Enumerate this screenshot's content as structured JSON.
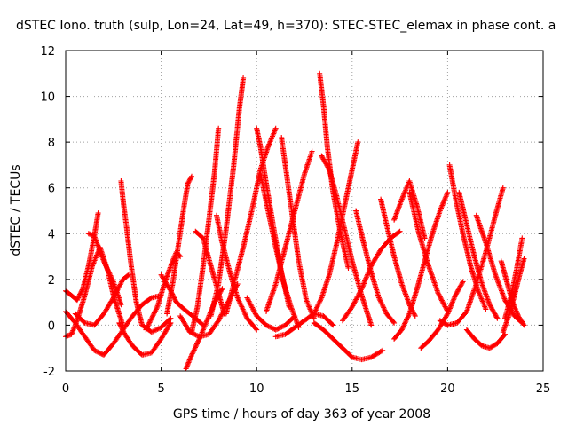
{
  "chart_data": {
    "type": "scatter",
    "title": "dSTEC Iono. truth (sulp, Lon=24, Lat=49, h=370): STEC-STEC_elemax in phase cont. a",
    "xlabel": "GPS time / hours of day 363 of year 2008",
    "ylabel": "dSTEC  / TECUs",
    "xlim": [
      0,
      25
    ],
    "ylim": [
      -2,
      12
    ],
    "xticks": [
      "0",
      "5",
      "10",
      "15",
      "20",
      "25"
    ],
    "yticks": [
      "-2",
      "0",
      "2",
      "4",
      "6",
      "8",
      "10",
      "12"
    ],
    "grid": true,
    "marker": "+",
    "color": "#ff0000",
    "series": [
      {
        "x": [
          0.0,
          0.3,
          0.6,
          0.9,
          1.2,
          1.5,
          1.7
        ],
        "y": [
          1.5,
          1.3,
          1.1,
          1.6,
          2.6,
          3.9,
          4.9
        ]
      },
      {
        "x": [
          0.0,
          0.3,
          0.6,
          1.0,
          1.4,
          1.8,
          2.2,
          2.5,
          2.8,
          3.0
        ],
        "y": [
          -0.5,
          -0.4,
          0.2,
          1.3,
          2.6,
          3.4,
          2.4,
          1.3,
          0.5,
          0.0
        ]
      },
      {
        "x": [
          0.0,
          0.5,
          1.0,
          1.5,
          2.0,
          2.5,
          3.0,
          3.5,
          4.0,
          4.5,
          5.0
        ],
        "y": [
          0.6,
          0.1,
          -0.5,
          -1.1,
          -1.3,
          -0.8,
          -0.2,
          0.4,
          0.9,
          1.2,
          1.3
        ]
      },
      {
        "x": [
          0.5,
          1.0,
          1.5,
          2.0,
          2.5,
          3.0,
          3.3
        ],
        "y": [
          0.5,
          0.1,
          0.0,
          0.5,
          1.2,
          2.0,
          2.2
        ]
      },
      {
        "x": [
          1.2,
          1.5,
          1.8,
          2.1,
          2.5,
          2.9
        ],
        "y": [
          4.0,
          3.9,
          3.2,
          2.6,
          1.9,
          0.9
        ]
      },
      {
        "x": [
          2.9,
          3.0,
          3.2,
          3.4,
          3.7,
          4.0,
          4.5,
          5.0,
          5.5
        ],
        "y": [
          6.3,
          5.5,
          4.2,
          2.8,
          1.0,
          0.0,
          -0.3,
          -0.1,
          0.3
        ]
      },
      {
        "x": [
          2.8,
          3.1,
          3.5,
          4.0,
          4.5,
          5.0,
          5.5
        ],
        "y": [
          0.1,
          -0.4,
          -0.9,
          -1.3,
          -1.2,
          -0.6,
          0.1
        ]
      },
      {
        "x": [
          4.2,
          4.8,
          5.2,
          5.6,
          5.8,
          6.0
        ],
        "y": [
          -0.2,
          0.8,
          1.9,
          2.8,
          3.2,
          3.0
        ]
      },
      {
        "x": [
          5.0,
          5.5,
          5.8,
          6.2,
          6.8,
          7.2
        ],
        "y": [
          2.2,
          1.5,
          1.0,
          0.7,
          0.3,
          0.0
        ]
      },
      {
        "x": [
          5.3,
          5.6,
          5.9,
          6.2,
          6.4,
          6.6
        ],
        "y": [
          0.5,
          1.8,
          3.5,
          5.2,
          6.2,
          6.5
        ]
      },
      {
        "x": [
          6.3,
          6.6,
          7.0,
          7.4,
          7.8,
          8.2
        ],
        "y": [
          -1.9,
          -1.3,
          -0.6,
          0.2,
          1.0,
          1.6
        ]
      },
      {
        "x": [
          6.0,
          6.5,
          7.0,
          7.5,
          8.0,
          8.5,
          9.0
        ],
        "y": [
          0.4,
          -0.3,
          -0.5,
          -0.4,
          0.2,
          1.0,
          1.8
        ]
      },
      {
        "x": [
          6.6,
          6.9,
          7.2,
          7.5,
          7.8,
          8.0
        ],
        "y": [
          -0.3,
          0.8,
          2.6,
          4.6,
          6.7,
          8.6
        ]
      },
      {
        "x": [
          6.8,
          7.2,
          7.6,
          8.0,
          8.3
        ],
        "y": [
          4.1,
          3.8,
          2.6,
          1.4,
          0.5
        ]
      },
      {
        "x": [
          7.6,
          8.0,
          8.4,
          8.8,
          9.1,
          9.3
        ],
        "y": [
          0.4,
          1.8,
          4.2,
          7.0,
          9.5,
          10.8
        ]
      },
      {
        "x": [
          7.9,
          8.2,
          8.6,
          9.0,
          9.5,
          10.0
        ],
        "y": [
          4.8,
          3.6,
          2.3,
          1.2,
          0.3,
          -0.2
        ]
      },
      {
        "x": [
          8.4,
          8.8,
          9.3,
          9.8,
          10.2,
          10.6,
          11.0
        ],
        "y": [
          0.5,
          1.8,
          3.4,
          5.2,
          6.8,
          7.8,
          8.6
        ]
      },
      {
        "x": [
          10.0,
          10.2,
          10.5,
          10.9,
          11.3,
          11.7
        ],
        "y": [
          8.6,
          7.8,
          6.2,
          4.2,
          2.3,
          0.8
        ]
      },
      {
        "x": [
          10.2,
          10.6,
          11.0,
          11.4,
          11.8,
          12.2
        ],
        "y": [
          6.6,
          5.0,
          3.4,
          1.9,
          0.8,
          -0.1
        ]
      },
      {
        "x": [
          9.5,
          10.0,
          10.5,
          11.0,
          11.5,
          12.0
        ],
        "y": [
          1.2,
          0.4,
          0.0,
          -0.2,
          0.0,
          0.4
        ]
      },
      {
        "x": [
          10.5,
          11.0,
          11.5,
          12.0,
          12.5,
          12.9
        ],
        "y": [
          0.6,
          1.8,
          3.4,
          5.0,
          6.6,
          7.6
        ]
      },
      {
        "x": [
          11.3,
          11.8,
          12.2,
          12.6,
          13.0
        ],
        "y": [
          8.2,
          5.2,
          2.8,
          1.1,
          0.3
        ]
      },
      {
        "x": [
          11.0,
          11.5,
          12.0,
          12.5,
          13.0,
          13.5,
          14.0
        ],
        "y": [
          -0.5,
          -0.4,
          -0.1,
          0.2,
          0.5,
          0.4,
          0.0
        ]
      },
      {
        "x": [
          13.3,
          13.5,
          13.7,
          14.0,
          14.4,
          14.8
        ],
        "y": [
          11.0,
          9.6,
          7.8,
          5.8,
          4.0,
          2.5
        ]
      },
      {
        "x": [
          13.0,
          13.4,
          13.8,
          14.2,
          14.6,
          15.0,
          15.3
        ],
        "y": [
          0.5,
          1.2,
          2.2,
          3.6,
          5.2,
          6.8,
          8.0
        ]
      },
      {
        "x": [
          13.4,
          13.8,
          14.2,
          14.6,
          15.0,
          15.5,
          16.0
        ],
        "y": [
          7.4,
          6.8,
          5.6,
          4.2,
          2.8,
          1.3,
          0.0
        ]
      },
      {
        "x": [
          13.0,
          13.5,
          14.0,
          14.5,
          15.0,
          15.5,
          16.0,
          16.6
        ],
        "y": [
          0.1,
          -0.2,
          -0.6,
          -1.0,
          -1.4,
          -1.5,
          -1.4,
          -1.1
        ]
      },
      {
        "x": [
          15.2,
          15.6,
          16.0,
          16.4,
          16.8,
          17.2
        ],
        "y": [
          5.0,
          3.6,
          2.3,
          1.2,
          0.5,
          0.1
        ]
      },
      {
        "x": [
          14.5,
          15.0,
          15.5,
          16.0,
          16.5,
          17.0,
          17.5
        ],
        "y": [
          0.2,
          0.8,
          1.6,
          2.6,
          3.3,
          3.8,
          4.1
        ]
      },
      {
        "x": [
          16.5,
          16.8,
          17.2,
          17.6,
          18.0,
          18.3
        ],
        "y": [
          5.5,
          4.4,
          3.0,
          1.8,
          0.9,
          0.4
        ]
      },
      {
        "x": [
          17.2,
          17.6,
          18.0,
          18.4,
          18.8,
          19.2,
          19.6,
          20.0
        ],
        "y": [
          -0.6,
          -0.2,
          0.5,
          1.6,
          2.8,
          4.0,
          5.0,
          5.8
        ]
      },
      {
        "x": [
          17.2,
          17.6,
          18.0,
          18.4,
          18.8
        ],
        "y": [
          4.6,
          5.5,
          6.3,
          5.2,
          3.8
        ]
      },
      {
        "x": [
          18.6,
          19.0,
          19.5,
          20.0,
          20.4,
          20.8
        ],
        "y": [
          -1.0,
          -0.7,
          -0.2,
          0.5,
          1.3,
          1.9
        ]
      },
      {
        "x": [
          18.0,
          18.5,
          19.0,
          19.5,
          20.0
        ],
        "y": [
          5.8,
          4.0,
          2.6,
          1.4,
          0.6
        ]
      },
      {
        "x": [
          20.1,
          20.4,
          20.8,
          21.2,
          21.6,
          22.0
        ],
        "y": [
          7.0,
          5.6,
          4.0,
          2.6,
          1.5,
          0.7
        ]
      },
      {
        "x": [
          19.6,
          20.0,
          20.5,
          21.0,
          21.5,
          22.0,
          22.5,
          22.9
        ],
        "y": [
          0.2,
          0.0,
          0.1,
          0.6,
          1.8,
          3.2,
          4.8,
          6.0
        ]
      },
      {
        "x": [
          20.6,
          21.0,
          21.4,
          21.8,
          22.2,
          22.6
        ],
        "y": [
          5.8,
          4.4,
          3.0,
          1.8,
          0.9,
          0.3
        ]
      },
      {
        "x": [
          21.0,
          21.4,
          21.8,
          22.2,
          22.6,
          23.0
        ],
        "y": [
          -0.2,
          -0.6,
          -0.9,
          -1.0,
          -0.8,
          -0.4
        ]
      },
      {
        "x": [
          21.5,
          22.0,
          22.5,
          23.0,
          23.5,
          23.9
        ],
        "y": [
          4.8,
          3.6,
          2.2,
          1.1,
          0.4,
          0.1
        ]
      },
      {
        "x": [
          22.8,
          23.1,
          23.4,
          23.7,
          24.0
        ],
        "y": [
          2.8,
          1.9,
          1.0,
          0.4,
          0.0
        ]
      },
      {
        "x": [
          23.0,
          23.3,
          23.6,
          23.9
        ],
        "y": [
          0.3,
          1.2,
          2.4,
          3.8
        ]
      },
      {
        "x": [
          22.9,
          23.2,
          23.5,
          23.8,
          24.0
        ],
        "y": [
          -0.3,
          0.4,
          1.3,
          2.3,
          2.9
        ]
      }
    ]
  }
}
